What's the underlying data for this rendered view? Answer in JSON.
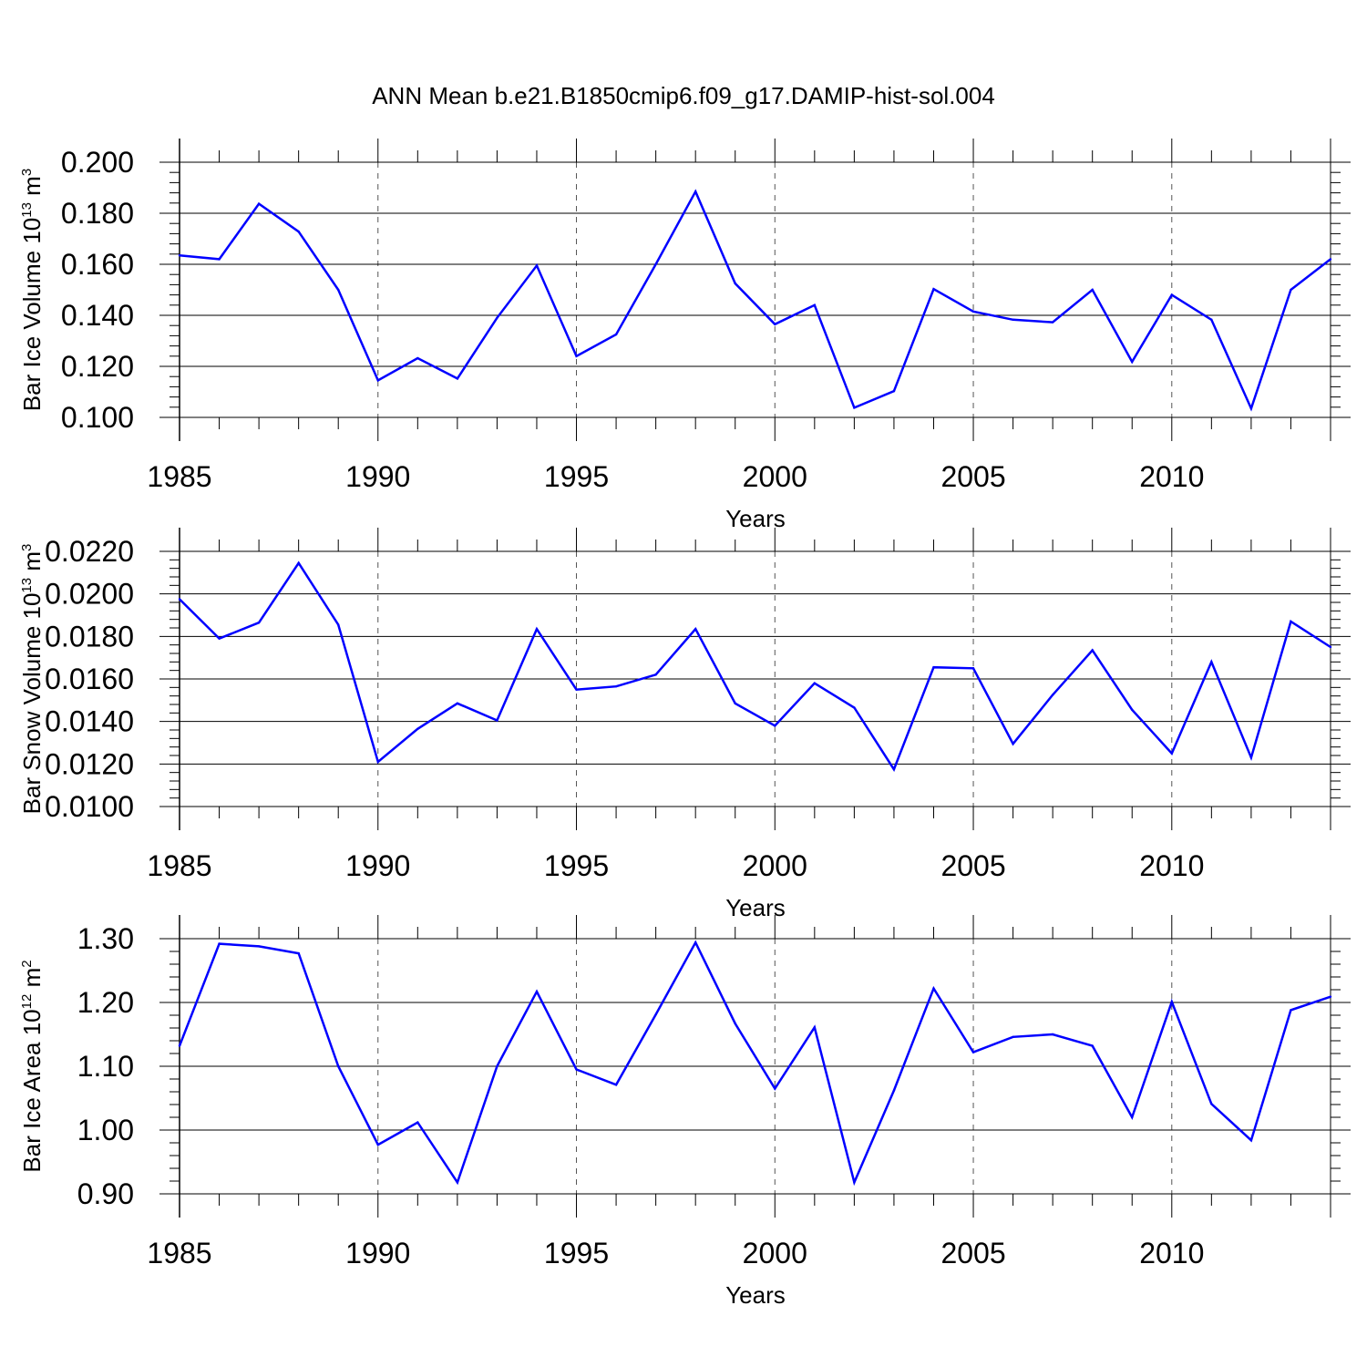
{
  "chart_data": {
    "title": "ANN Mean b.e21.B1850cmip6.f09_g17.DAMIP-hist-sol.004",
    "line_color": "#0000ff",
    "grid_color": "#555555",
    "panels": [
      {
        "type": "line",
        "ylabel": {
          "prefix": "Bar Ice Volume 10",
          "exp": "13",
          "unit": " m",
          "unit_exp": "3"
        },
        "xlabel": "Years",
        "xlim": [
          1985,
          2014
        ],
        "ylim": [
          0.1,
          0.2
        ],
        "yticks": [
          0.1,
          0.12,
          0.14,
          0.16,
          0.18,
          0.2
        ],
        "ytick_labels": [
          "0.100",
          "0.120",
          "0.140",
          "0.160",
          "0.180",
          "0.200"
        ],
        "x": [
          1985,
          1986,
          1987,
          1988,
          1989,
          1990,
          1991,
          1992,
          1993,
          1994,
          1995,
          1996,
          1997,
          1998,
          1999,
          2000,
          2001,
          2002,
          2003,
          2004,
          2005,
          2006,
          2007,
          2008,
          2009,
          2010,
          2011,
          2012,
          2013,
          2014
        ],
        "values": [
          0.1635,
          0.162,
          0.1837,
          0.1728,
          0.15,
          0.1145,
          0.1232,
          0.1152,
          0.139,
          0.1595,
          0.124,
          0.1325,
          0.16,
          0.1885,
          0.1525,
          0.1365,
          0.144,
          0.1038,
          0.1103,
          0.1503,
          0.1415,
          0.1383,
          0.1373,
          0.15,
          0.1218,
          0.148,
          0.1383,
          0.1035,
          0.15,
          0.162
        ]
      },
      {
        "type": "line",
        "ylabel": {
          "prefix": "Bar Snow Volume 10",
          "exp": "13",
          "unit": " m",
          "unit_exp": "3"
        },
        "xlabel": "Years",
        "xlim": [
          1985,
          2014
        ],
        "ylim": [
          0.01,
          0.022
        ],
        "yticks": [
          0.01,
          0.012,
          0.014,
          0.016,
          0.018,
          0.02,
          0.022
        ],
        "ytick_labels": [
          "0.0100",
          "0.0120",
          "0.0140",
          "0.0160",
          "0.0180",
          "0.0200",
          "0.0220"
        ],
        "x": [
          1985,
          1986,
          1987,
          1988,
          1989,
          1990,
          1991,
          1992,
          1993,
          1994,
          1995,
          1996,
          1997,
          1998,
          1999,
          2000,
          2001,
          2002,
          2003,
          2004,
          2005,
          2006,
          2007,
          2008,
          2009,
          2010,
          2011,
          2012,
          2013,
          2014
        ],
        "values": [
          0.01975,
          0.0179,
          0.01865,
          0.02145,
          0.01855,
          0.0121,
          0.01365,
          0.01485,
          0.01405,
          0.01835,
          0.0155,
          0.01565,
          0.0162,
          0.01835,
          0.01485,
          0.0138,
          0.0158,
          0.01465,
          0.01175,
          0.01655,
          0.0165,
          0.01295,
          0.01525,
          0.01735,
          0.01455,
          0.0125,
          0.0168,
          0.0123,
          0.0187,
          0.0175
        ]
      },
      {
        "type": "line",
        "ylabel": {
          "prefix": "Bar Ice Area 10",
          "exp": "12",
          "unit": " m",
          "unit_exp": "2"
        },
        "xlabel": "Years",
        "xlim": [
          1985,
          2014
        ],
        "ylim": [
          0.9,
          1.3
        ],
        "yticks": [
          0.9,
          1.0,
          1.1,
          1.2,
          1.3
        ],
        "ytick_labels": [
          "0.90",
          "1.00",
          "1.10",
          "1.20",
          "1.30"
        ],
        "x": [
          1985,
          1986,
          1987,
          1988,
          1989,
          1990,
          1991,
          1992,
          1993,
          1994,
          1995,
          1996,
          1997,
          1998,
          1999,
          2000,
          2001,
          2002,
          2003,
          2004,
          2005,
          2006,
          2007,
          2008,
          2009,
          2010,
          2011,
          2012,
          2013,
          2014
        ],
        "values": [
          1.132,
          1.292,
          1.288,
          1.277,
          1.1,
          0.977,
          1.012,
          0.918,
          1.1,
          1.217,
          1.095,
          1.071,
          1.181,
          1.294,
          1.167,
          1.065,
          1.161,
          0.918,
          1.062,
          1.222,
          1.122,
          1.146,
          1.15,
          1.132,
          1.02,
          1.201,
          1.041,
          0.984,
          1.188,
          1.209
        ]
      }
    ],
    "xticks": [
      1985,
      1990,
      1995,
      2000,
      2005,
      2010
    ],
    "xtick_labels": [
      "1985",
      "1990",
      "1995",
      "2000",
      "2005",
      "2010"
    ]
  }
}
